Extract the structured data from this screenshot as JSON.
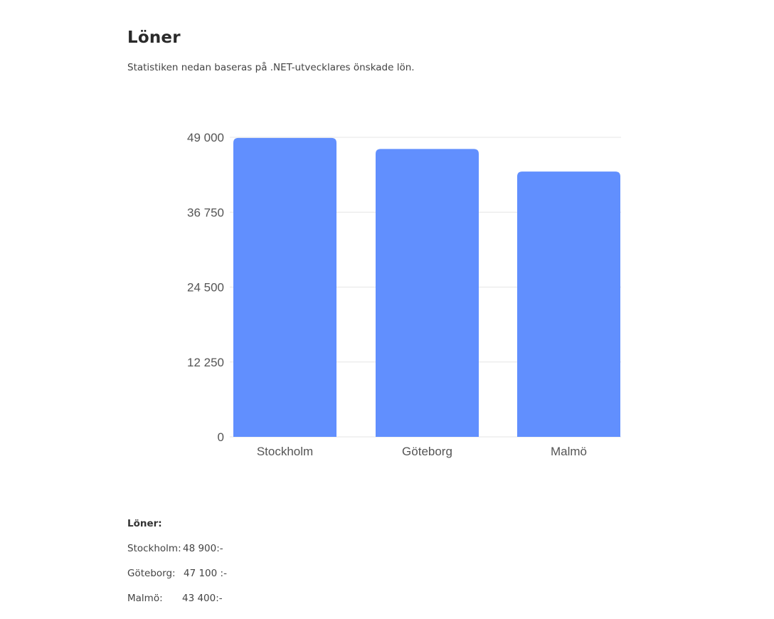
{
  "page": {
    "title": "Löner",
    "subtitle": "Statistiken nedan baseras på .NET-utvecklares önskade lön."
  },
  "chart_data": {
    "type": "bar",
    "categories": [
      "Stockholm",
      "Göteborg",
      "Malmö"
    ],
    "values": [
      48900,
      47100,
      43400
    ],
    "ylim": [
      0,
      49000
    ],
    "yticks": [
      0,
      12250,
      24500,
      36750,
      49000
    ],
    "ytick_labels": [
      "0",
      "12 250",
      "24 500",
      "36 750",
      "49 000"
    ],
    "grid": true,
    "bar_color": "#618ffe",
    "grid_color": "#e6e6e6"
  },
  "summary": {
    "heading": "Löner:",
    "rows": [
      {
        "city": "Stockholm:",
        "value": "48 900:-"
      },
      {
        "city": "Göteborg:",
        "value": "47 100 :-"
      },
      {
        "city": "Malmö:",
        "value": "43 400:-"
      }
    ]
  }
}
